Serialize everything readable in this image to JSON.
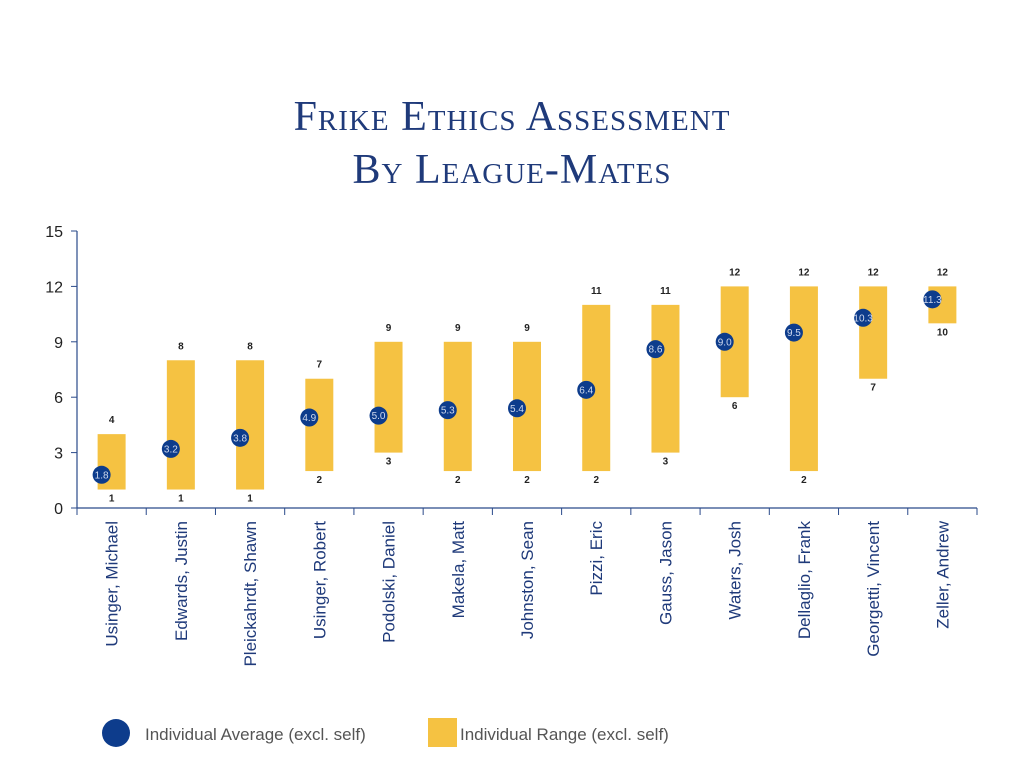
{
  "chart_data": {
    "type": "range-bar",
    "title_lines": [
      "Frike Ethics Assessment",
      "By League-Mates"
    ],
    "ylim": [
      0,
      15
    ],
    "yticks": [
      0,
      3,
      6,
      9,
      12,
      15
    ],
    "categories": [
      "Usinger, Michael",
      "Edwards, Justin",
      "Pleickahrdt, Shawn",
      "Usinger, Robert",
      "Podolski, Daniel",
      "Makela, Matt",
      "Johnston, Sean",
      "Pizzi, Eric",
      "Gauss, Jason",
      "Waters, Josh",
      "Dellaglio, Frank",
      "Georgetti, Vincent",
      "Zeller, Andrew"
    ],
    "series": [
      {
        "name": "Individual Range (excl. self)",
        "low": [
          1,
          1,
          1,
          2,
          3,
          2,
          2,
          2,
          3,
          6,
          2,
          7,
          10
        ],
        "high": [
          4,
          8,
          8,
          7,
          9,
          9,
          9,
          11,
          11,
          12,
          12,
          12,
          12
        ]
      },
      {
        "name": "Individual Average (excl. self)",
        "values": [
          1.8,
          3.2,
          3.8,
          4.9,
          5.0,
          5.3,
          5.4,
          6.4,
          8.6,
          9.0,
          9.5,
          10.3,
          11.3
        ]
      }
    ],
    "colors": {
      "range": "#f5c242",
      "average": "#0d3c8c",
      "title": "#1f3a7a"
    },
    "legend_position": "bottom"
  }
}
